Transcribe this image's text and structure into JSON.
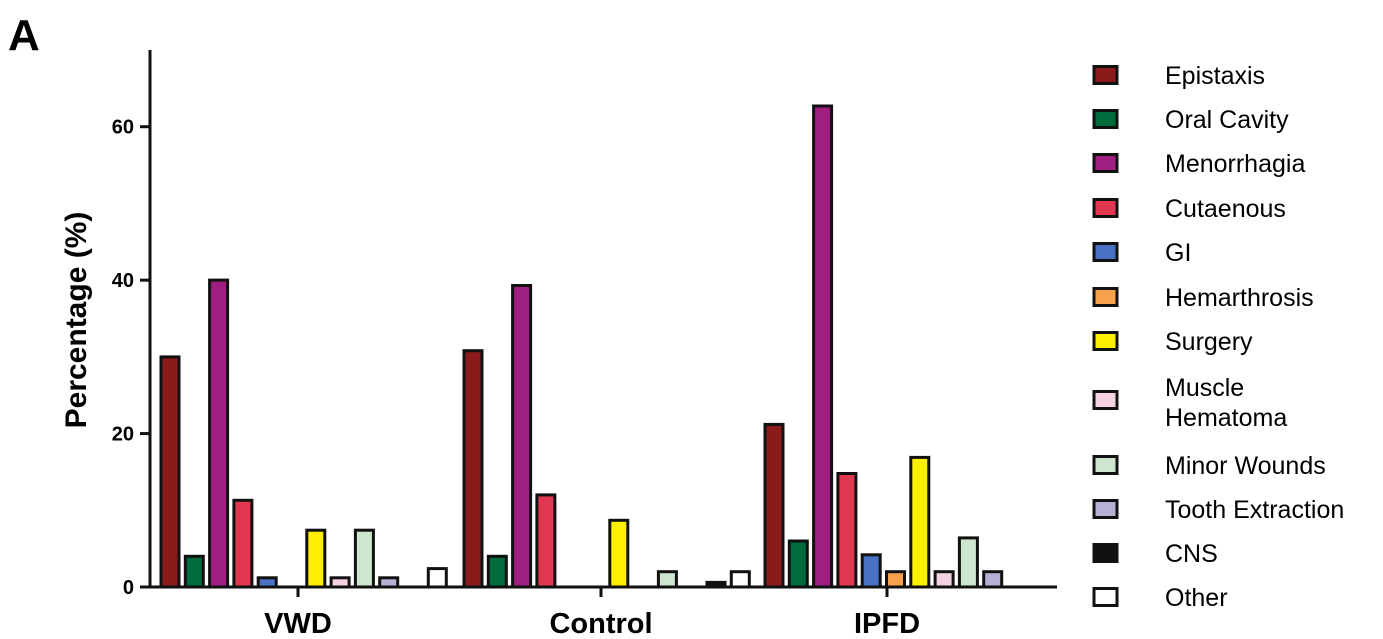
{
  "panel_label": "A",
  "chart_data": {
    "type": "bar",
    "title": "",
    "xlabel": "",
    "ylabel": "Percentage (%)",
    "ylim": [
      0,
      70
    ],
    "yticks": [
      0,
      20,
      40,
      60
    ],
    "grid": false,
    "legend_position": "right",
    "categories": [
      "VWD",
      "Control",
      "IPFD"
    ],
    "series": [
      {
        "name": "Epistaxis",
        "color": "#8B1A1A",
        "values": [
          30,
          30.8,
          21.2
        ]
      },
      {
        "name": "Oral Cavity",
        "color": "#006B3C",
        "values": [
          4,
          4,
          6
        ]
      },
      {
        "name": "Menorrhagia",
        "color": "#9E1F7F",
        "values": [
          40,
          39.3,
          62.7
        ]
      },
      {
        "name": "Cutaenous",
        "color": "#E03850",
        "values": [
          11.3,
          12,
          14.8
        ]
      },
      {
        "name": "GI",
        "color": "#4A72C4",
        "values": [
          1.2,
          0,
          4.2
        ]
      },
      {
        "name": "Hemarthrosis",
        "color": "#F7A24A",
        "values": [
          0,
          0,
          2
        ]
      },
      {
        "name": "Surgery",
        "color": "#FFF000",
        "values": [
          7.4,
          8.7,
          16.9
        ]
      },
      {
        "name": "Muscle Hematoma",
        "color": "#F4D2E4",
        "values": [
          1.2,
          0,
          2
        ]
      },
      {
        "name": "Minor Wounds",
        "color": "#CDE6CD",
        "values": [
          7.4,
          2,
          6.4
        ]
      },
      {
        "name": "Tooth Extraction",
        "color": "#B8B0D4",
        "values": [
          1.2,
          0,
          2
        ]
      },
      {
        "name": "CNS",
        "color": "#111111",
        "values": [
          0,
          0.6,
          0
        ]
      },
      {
        "name": "Other",
        "color": "#FFFFFF",
        "values": [
          2.4,
          2,
          0
        ]
      }
    ]
  }
}
